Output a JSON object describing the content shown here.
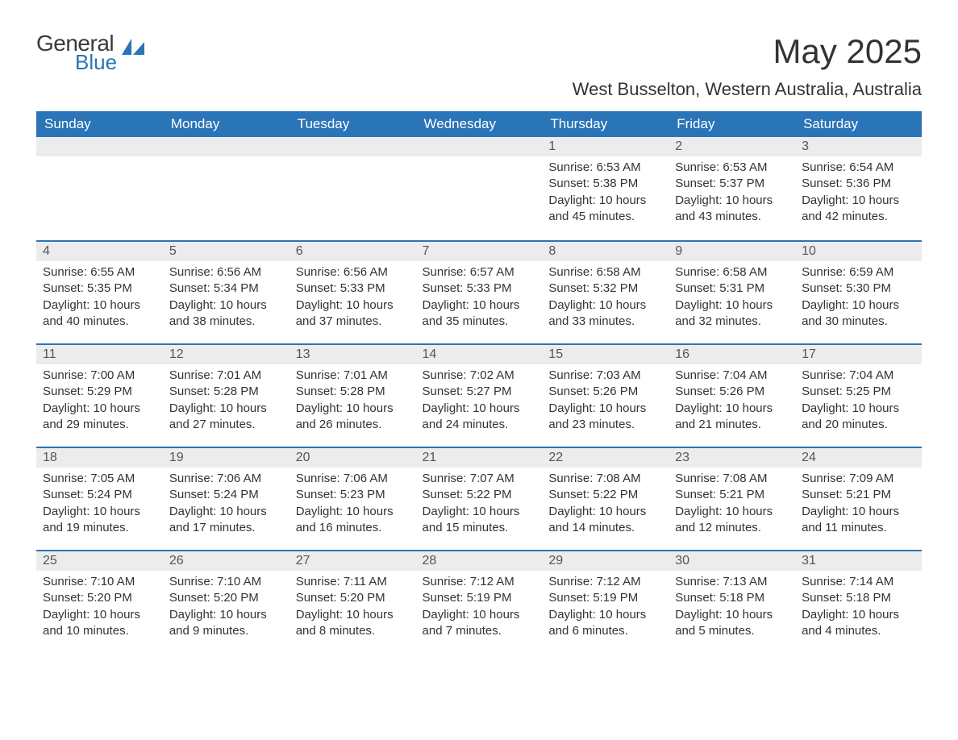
{
  "logo": {
    "general": "General",
    "blue": "Blue",
    "shape_color": "#2a74b8"
  },
  "title": "May 2025",
  "location": "West Busselton, Western Australia, Australia",
  "colors": {
    "header_bg": "#2a74b8",
    "header_text": "#ffffff",
    "daynum_bg": "#ececec",
    "daynum_border": "#2a74b8",
    "body_text": "#333333"
  },
  "day_headers": [
    "Sunday",
    "Monday",
    "Tuesday",
    "Wednesday",
    "Thursday",
    "Friday",
    "Saturday"
  ],
  "weeks": [
    [
      null,
      null,
      null,
      null,
      {
        "n": "1",
        "sunrise": "6:53 AM",
        "sunset": "5:38 PM",
        "daylight": "10 hours and 45 minutes."
      },
      {
        "n": "2",
        "sunrise": "6:53 AM",
        "sunset": "5:37 PM",
        "daylight": "10 hours and 43 minutes."
      },
      {
        "n": "3",
        "sunrise": "6:54 AM",
        "sunset": "5:36 PM",
        "daylight": "10 hours and 42 minutes."
      }
    ],
    [
      {
        "n": "4",
        "sunrise": "6:55 AM",
        "sunset": "5:35 PM",
        "daylight": "10 hours and 40 minutes."
      },
      {
        "n": "5",
        "sunrise": "6:56 AM",
        "sunset": "5:34 PM",
        "daylight": "10 hours and 38 minutes."
      },
      {
        "n": "6",
        "sunrise": "6:56 AM",
        "sunset": "5:33 PM",
        "daylight": "10 hours and 37 minutes."
      },
      {
        "n": "7",
        "sunrise": "6:57 AM",
        "sunset": "5:33 PM",
        "daylight": "10 hours and 35 minutes."
      },
      {
        "n": "8",
        "sunrise": "6:58 AM",
        "sunset": "5:32 PM",
        "daylight": "10 hours and 33 minutes."
      },
      {
        "n": "9",
        "sunrise": "6:58 AM",
        "sunset": "5:31 PM",
        "daylight": "10 hours and 32 minutes."
      },
      {
        "n": "10",
        "sunrise": "6:59 AM",
        "sunset": "5:30 PM",
        "daylight": "10 hours and 30 minutes."
      }
    ],
    [
      {
        "n": "11",
        "sunrise": "7:00 AM",
        "sunset": "5:29 PM",
        "daylight": "10 hours and 29 minutes."
      },
      {
        "n": "12",
        "sunrise": "7:01 AM",
        "sunset": "5:28 PM",
        "daylight": "10 hours and 27 minutes."
      },
      {
        "n": "13",
        "sunrise": "7:01 AM",
        "sunset": "5:28 PM",
        "daylight": "10 hours and 26 minutes."
      },
      {
        "n": "14",
        "sunrise": "7:02 AM",
        "sunset": "5:27 PM",
        "daylight": "10 hours and 24 minutes."
      },
      {
        "n": "15",
        "sunrise": "7:03 AM",
        "sunset": "5:26 PM",
        "daylight": "10 hours and 23 minutes."
      },
      {
        "n": "16",
        "sunrise": "7:04 AM",
        "sunset": "5:26 PM",
        "daylight": "10 hours and 21 minutes."
      },
      {
        "n": "17",
        "sunrise": "7:04 AM",
        "sunset": "5:25 PM",
        "daylight": "10 hours and 20 minutes."
      }
    ],
    [
      {
        "n": "18",
        "sunrise": "7:05 AM",
        "sunset": "5:24 PM",
        "daylight": "10 hours and 19 minutes."
      },
      {
        "n": "19",
        "sunrise": "7:06 AM",
        "sunset": "5:24 PM",
        "daylight": "10 hours and 17 minutes."
      },
      {
        "n": "20",
        "sunrise": "7:06 AM",
        "sunset": "5:23 PM",
        "daylight": "10 hours and 16 minutes."
      },
      {
        "n": "21",
        "sunrise": "7:07 AM",
        "sunset": "5:22 PM",
        "daylight": "10 hours and 15 minutes."
      },
      {
        "n": "22",
        "sunrise": "7:08 AM",
        "sunset": "5:22 PM",
        "daylight": "10 hours and 14 minutes."
      },
      {
        "n": "23",
        "sunrise": "7:08 AM",
        "sunset": "5:21 PM",
        "daylight": "10 hours and 12 minutes."
      },
      {
        "n": "24",
        "sunrise": "7:09 AM",
        "sunset": "5:21 PM",
        "daylight": "10 hours and 11 minutes."
      }
    ],
    [
      {
        "n": "25",
        "sunrise": "7:10 AM",
        "sunset": "5:20 PM",
        "daylight": "10 hours and 10 minutes."
      },
      {
        "n": "26",
        "sunrise": "7:10 AM",
        "sunset": "5:20 PM",
        "daylight": "10 hours and 9 minutes."
      },
      {
        "n": "27",
        "sunrise": "7:11 AM",
        "sunset": "5:20 PM",
        "daylight": "10 hours and 8 minutes."
      },
      {
        "n": "28",
        "sunrise": "7:12 AM",
        "sunset": "5:19 PM",
        "daylight": "10 hours and 7 minutes."
      },
      {
        "n": "29",
        "sunrise": "7:12 AM",
        "sunset": "5:19 PM",
        "daylight": "10 hours and 6 minutes."
      },
      {
        "n": "30",
        "sunrise": "7:13 AM",
        "sunset": "5:18 PM",
        "daylight": "10 hours and 5 minutes."
      },
      {
        "n": "31",
        "sunrise": "7:14 AM",
        "sunset": "5:18 PM",
        "daylight": "10 hours and 4 minutes."
      }
    ]
  ],
  "labels": {
    "sunrise": "Sunrise: ",
    "sunset": "Sunset: ",
    "daylight": "Daylight: "
  }
}
